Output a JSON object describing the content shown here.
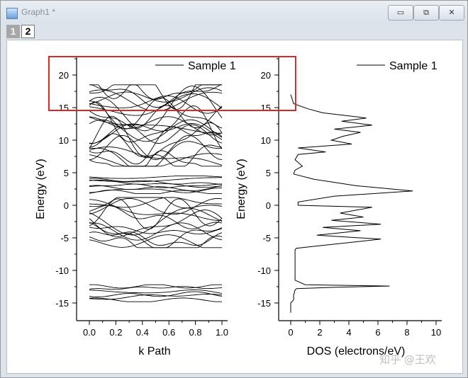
{
  "window": {
    "title": "Graph1 *",
    "minimize_label": "▭",
    "restore_label": "⧉",
    "close_label": "✕",
    "icon": "graph-window-icon"
  },
  "tabs": [
    {
      "label": "1",
      "active": false
    },
    {
      "label": "2",
      "active": true
    }
  ],
  "watermark": "知乎 @王欢",
  "highlight_color": "#d42a2a",
  "chart_data": [
    {
      "type": "line",
      "title": "",
      "xlabel": "k Path",
      "ylabel": "Energy (eV)",
      "xlim": [
        -0.1,
        1.05
      ],
      "ylim": [
        -17,
        22
      ],
      "xticks": [
        "0.0",
        "0.2",
        "0.4",
        "0.6",
        "0.8",
        "1.0"
      ],
      "yticks": [
        "-15",
        "-10",
        "-5",
        "0",
        "5",
        "10",
        "15",
        "20"
      ],
      "legend": {
        "entries": [
          "Sample 1"
        ],
        "placement": "top-right"
      },
      "band_groups": [
        {
          "range": [
            -14.8,
            -12.2
          ],
          "count": 6
        },
        {
          "range": [
            -6.5,
            1.2
          ],
          "count": 14
        },
        {
          "range": [
            1.8,
            4.5
          ],
          "count": 8
        },
        {
          "range": [
            6.0,
            18.5
          ],
          "count": 24
        }
      ],
      "series": [
        {
          "x": [
            0.0,
            0.25,
            0.5,
            0.75,
            1.0
          ],
          "y": [
            -13.1,
            -12.2,
            -12.9,
            -13.8,
            -12.3
          ]
        },
        {
          "x": [
            0.0,
            0.3,
            0.6,
            0.85,
            1.0
          ],
          "y": [
            -14.3,
            -12.4,
            -13.6,
            -12.2,
            -12.6
          ]
        },
        {
          "x": [
            0.0,
            0.35,
            0.6,
            1.0
          ],
          "y": [
            2.3,
            3.8,
            2.5,
            4.4
          ]
        },
        {
          "x": [
            0.0,
            0.2,
            0.45,
            0.62,
            0.9,
            1.0
          ],
          "y": [
            0.0,
            -1.5,
            0.4,
            -2.0,
            0.0,
            -1.2
          ]
        },
        {
          "x": [
            0.0,
            0.3,
            0.5,
            0.85,
            1.0
          ],
          "y": [
            16.1,
            17.8,
            15.4,
            18.3,
            18.3
          ]
        },
        {
          "x": [
            0.0,
            0.2,
            0.45,
            0.7,
            1.0
          ],
          "y": [
            9.9,
            8.1,
            11.2,
            7.4,
            10.6
          ]
        }
      ]
    },
    {
      "type": "line",
      "title": "",
      "xlabel": "DOS (electrons/eV)",
      "ylabel": "Energy (eV)",
      "xlim": [
        -0.7,
        10.3
      ],
      "ylim": [
        -17,
        22
      ],
      "xticks": [
        "0",
        "2",
        "4",
        "6",
        "8",
        "10"
      ],
      "yticks": [
        "-15",
        "-10",
        "-5",
        "0",
        "5",
        "10",
        "15",
        "20"
      ],
      "legend": {
        "entries": [
          "Sample 1"
        ],
        "placement": "top-right"
      },
      "series": [
        {
          "name": "Sample 1",
          "dos": [
            0.0,
            0.0,
            0.0,
            0.2,
            0.2,
            0.3,
            0.4,
            3.0,
            6.8,
            1.0,
            0.3,
            0.3,
            0.3,
            0.3,
            0.3,
            0.4,
            1.2,
            6.2,
            1.8,
            4.8,
            2.2,
            6.2,
            2.8,
            5.0,
            3.4,
            5.6,
            0.5,
            0.5,
            3.0,
            8.4,
            4.5,
            1.6,
            0.2,
            0.3,
            0.8,
            0.3,
            0.5,
            2.4,
            0.5,
            4.2,
            2.8,
            3.6,
            4.8,
            3.0,
            5.6,
            3.5,
            5.2,
            2.2,
            1.2,
            0.2,
            0.0
          ],
          "energy": [
            -16.5,
            -15.5,
            -15.0,
            -14.5,
            -13.8,
            -13.0,
            -12.8,
            -12.6,
            -12.4,
            -12.2,
            -11.5,
            -10.0,
            -8.0,
            -7.0,
            -6.8,
            -6.6,
            -6.4,
            -5.2,
            -4.6,
            -3.9,
            -3.4,
            -2.9,
            -2.3,
            -1.8,
            -1.2,
            -0.3,
            0.0,
            0.5,
            1.4,
            2.2,
            3.0,
            4.0,
            4.8,
            5.4,
            6.0,
            7.0,
            7.8,
            8.2,
            8.8,
            9.4,
            10.0,
            10.6,
            11.2,
            11.7,
            12.3,
            12.9,
            13.4,
            14.2,
            14.8,
            15.6,
            17.0
          ]
        }
      ]
    }
  ]
}
